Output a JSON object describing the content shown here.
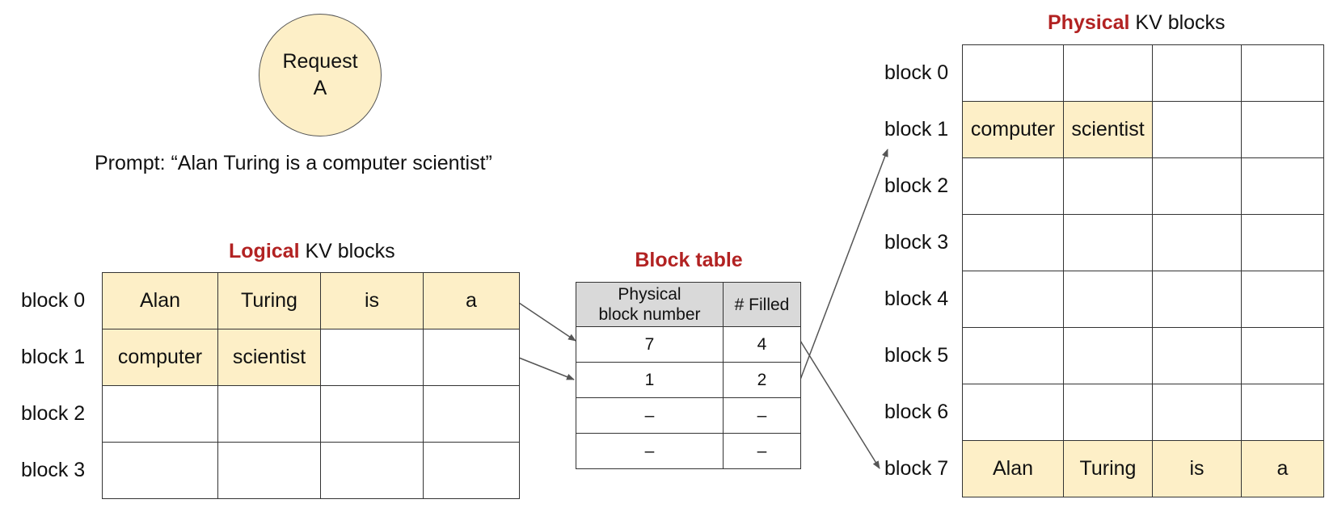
{
  "request": {
    "line1": "Request",
    "line2": "A"
  },
  "prompt": "Prompt: “Alan Turing is a computer scientist”",
  "logical": {
    "title_highlight": "Logical",
    "title_rest": " KV blocks",
    "row_labels": [
      "block 0",
      "block 1",
      "block 2",
      "block 3"
    ],
    "rows": [
      [
        "Alan",
        "Turing",
        "is",
        "a"
      ],
      [
        "computer",
        "scientist",
        "",
        ""
      ],
      [
        "",
        "",
        "",
        ""
      ],
      [
        "",
        "",
        "",
        ""
      ]
    ]
  },
  "block_table": {
    "title": "Block table",
    "header_physical_1": "Physical",
    "header_physical_2": "block number",
    "header_filled": "# Filled",
    "rows": [
      [
        "7",
        "4"
      ],
      [
        "1",
        "2"
      ],
      [
        "–",
        "–"
      ],
      [
        "–",
        "–"
      ]
    ]
  },
  "physical": {
    "title_highlight": "Physical",
    "title_rest": " KV blocks",
    "row_labels": [
      "block 0",
      "block 1",
      "block 2",
      "block 3",
      "block 4",
      "block 5",
      "block 6",
      "block 7"
    ],
    "rows": [
      [
        "",
        "",
        "",
        ""
      ],
      [
        "computer",
        "scientist",
        "",
        ""
      ],
      [
        "",
        "",
        "",
        ""
      ],
      [
        "",
        "",
        "",
        ""
      ],
      [
        "",
        "",
        "",
        ""
      ],
      [
        "",
        "",
        "",
        ""
      ],
      [
        "",
        "",
        "",
        ""
      ],
      [
        "Alan",
        "Turing",
        "is",
        "a"
      ]
    ]
  },
  "colors": {
    "filled": "#fdefc7",
    "highlight": "#b22222",
    "header_bg": "#d9d9d9"
  }
}
